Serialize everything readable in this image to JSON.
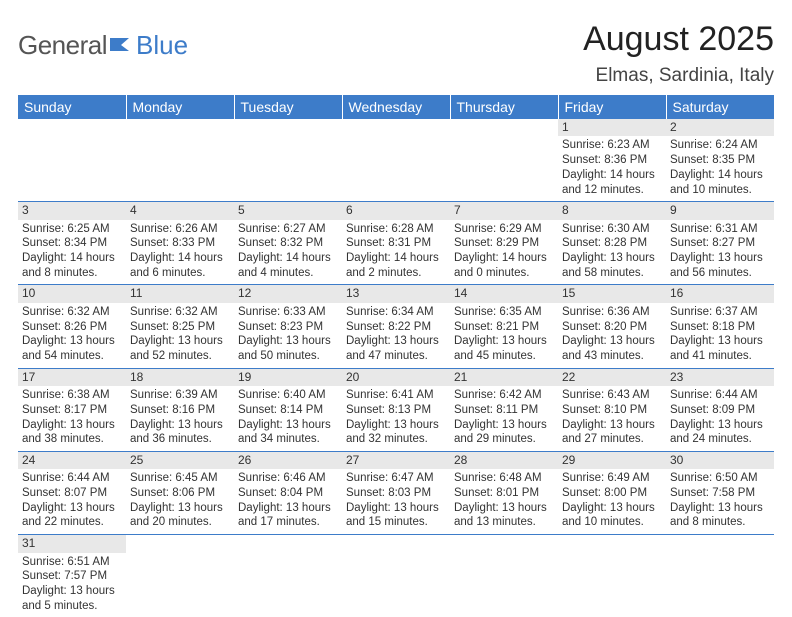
{
  "logo": {
    "general": "General",
    "blue": "Blue"
  },
  "header": {
    "month_title": "August 2025",
    "location": "Elmas, Sardinia, Italy"
  },
  "colors": {
    "brand": "#3d7cc9",
    "daynum_bg": "#e8e8e8",
    "text": "#333333"
  },
  "weekdays": [
    "Sunday",
    "Monday",
    "Tuesday",
    "Wednesday",
    "Thursday",
    "Friday",
    "Saturday"
  ],
  "weeks": [
    [
      null,
      null,
      null,
      null,
      null,
      {
        "n": "1",
        "sr": "Sunrise: 6:23 AM",
        "ss": "Sunset: 8:36 PM",
        "dl": "Daylight: 14 hours and 12 minutes."
      },
      {
        "n": "2",
        "sr": "Sunrise: 6:24 AM",
        "ss": "Sunset: 8:35 PM",
        "dl": "Daylight: 14 hours and 10 minutes."
      }
    ],
    [
      {
        "n": "3",
        "sr": "Sunrise: 6:25 AM",
        "ss": "Sunset: 8:34 PM",
        "dl": "Daylight: 14 hours and 8 minutes."
      },
      {
        "n": "4",
        "sr": "Sunrise: 6:26 AM",
        "ss": "Sunset: 8:33 PM",
        "dl": "Daylight: 14 hours and 6 minutes."
      },
      {
        "n": "5",
        "sr": "Sunrise: 6:27 AM",
        "ss": "Sunset: 8:32 PM",
        "dl": "Daylight: 14 hours and 4 minutes."
      },
      {
        "n": "6",
        "sr": "Sunrise: 6:28 AM",
        "ss": "Sunset: 8:31 PM",
        "dl": "Daylight: 14 hours and 2 minutes."
      },
      {
        "n": "7",
        "sr": "Sunrise: 6:29 AM",
        "ss": "Sunset: 8:29 PM",
        "dl": "Daylight: 14 hours and 0 minutes."
      },
      {
        "n": "8",
        "sr": "Sunrise: 6:30 AM",
        "ss": "Sunset: 8:28 PM",
        "dl": "Daylight: 13 hours and 58 minutes."
      },
      {
        "n": "9",
        "sr": "Sunrise: 6:31 AM",
        "ss": "Sunset: 8:27 PM",
        "dl": "Daylight: 13 hours and 56 minutes."
      }
    ],
    [
      {
        "n": "10",
        "sr": "Sunrise: 6:32 AM",
        "ss": "Sunset: 8:26 PM",
        "dl": "Daylight: 13 hours and 54 minutes."
      },
      {
        "n": "11",
        "sr": "Sunrise: 6:32 AM",
        "ss": "Sunset: 8:25 PM",
        "dl": "Daylight: 13 hours and 52 minutes."
      },
      {
        "n": "12",
        "sr": "Sunrise: 6:33 AM",
        "ss": "Sunset: 8:23 PM",
        "dl": "Daylight: 13 hours and 50 minutes."
      },
      {
        "n": "13",
        "sr": "Sunrise: 6:34 AM",
        "ss": "Sunset: 8:22 PM",
        "dl": "Daylight: 13 hours and 47 minutes."
      },
      {
        "n": "14",
        "sr": "Sunrise: 6:35 AM",
        "ss": "Sunset: 8:21 PM",
        "dl": "Daylight: 13 hours and 45 minutes."
      },
      {
        "n": "15",
        "sr": "Sunrise: 6:36 AM",
        "ss": "Sunset: 8:20 PM",
        "dl": "Daylight: 13 hours and 43 minutes."
      },
      {
        "n": "16",
        "sr": "Sunrise: 6:37 AM",
        "ss": "Sunset: 8:18 PM",
        "dl": "Daylight: 13 hours and 41 minutes."
      }
    ],
    [
      {
        "n": "17",
        "sr": "Sunrise: 6:38 AM",
        "ss": "Sunset: 8:17 PM",
        "dl": "Daylight: 13 hours and 38 minutes."
      },
      {
        "n": "18",
        "sr": "Sunrise: 6:39 AM",
        "ss": "Sunset: 8:16 PM",
        "dl": "Daylight: 13 hours and 36 minutes."
      },
      {
        "n": "19",
        "sr": "Sunrise: 6:40 AM",
        "ss": "Sunset: 8:14 PM",
        "dl": "Daylight: 13 hours and 34 minutes."
      },
      {
        "n": "20",
        "sr": "Sunrise: 6:41 AM",
        "ss": "Sunset: 8:13 PM",
        "dl": "Daylight: 13 hours and 32 minutes."
      },
      {
        "n": "21",
        "sr": "Sunrise: 6:42 AM",
        "ss": "Sunset: 8:11 PM",
        "dl": "Daylight: 13 hours and 29 minutes."
      },
      {
        "n": "22",
        "sr": "Sunrise: 6:43 AM",
        "ss": "Sunset: 8:10 PM",
        "dl": "Daylight: 13 hours and 27 minutes."
      },
      {
        "n": "23",
        "sr": "Sunrise: 6:44 AM",
        "ss": "Sunset: 8:09 PM",
        "dl": "Daylight: 13 hours and 24 minutes."
      }
    ],
    [
      {
        "n": "24",
        "sr": "Sunrise: 6:44 AM",
        "ss": "Sunset: 8:07 PM",
        "dl": "Daylight: 13 hours and 22 minutes."
      },
      {
        "n": "25",
        "sr": "Sunrise: 6:45 AM",
        "ss": "Sunset: 8:06 PM",
        "dl": "Daylight: 13 hours and 20 minutes."
      },
      {
        "n": "26",
        "sr": "Sunrise: 6:46 AM",
        "ss": "Sunset: 8:04 PM",
        "dl": "Daylight: 13 hours and 17 minutes."
      },
      {
        "n": "27",
        "sr": "Sunrise: 6:47 AM",
        "ss": "Sunset: 8:03 PM",
        "dl": "Daylight: 13 hours and 15 minutes."
      },
      {
        "n": "28",
        "sr": "Sunrise: 6:48 AM",
        "ss": "Sunset: 8:01 PM",
        "dl": "Daylight: 13 hours and 13 minutes."
      },
      {
        "n": "29",
        "sr": "Sunrise: 6:49 AM",
        "ss": "Sunset: 8:00 PM",
        "dl": "Daylight: 13 hours and 10 minutes."
      },
      {
        "n": "30",
        "sr": "Sunrise: 6:50 AM",
        "ss": "Sunset: 7:58 PM",
        "dl": "Daylight: 13 hours and 8 minutes."
      }
    ],
    [
      {
        "n": "31",
        "sr": "Sunrise: 6:51 AM",
        "ss": "Sunset: 7:57 PM",
        "dl": "Daylight: 13 hours and 5 minutes."
      },
      null,
      null,
      null,
      null,
      null,
      null
    ]
  ]
}
